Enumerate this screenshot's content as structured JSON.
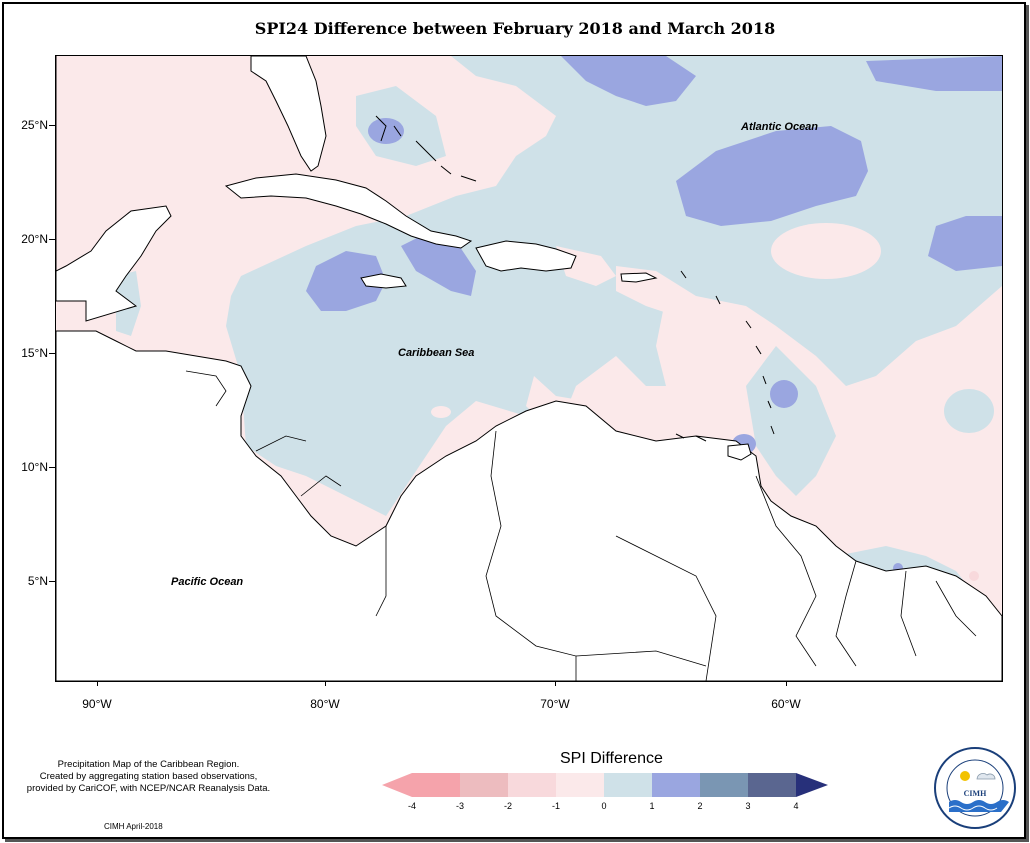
{
  "title": "SPI24 Difference between February 2018 and March 2018",
  "map": {
    "labels": {
      "atlantic": "Atlantic Ocean",
      "caribbean": "Caribbean Sea",
      "pacific": "Pacific Ocean"
    },
    "lat_ticks": [
      "25°N",
      "20°N",
      "15°N",
      "10°N",
      "5°N"
    ],
    "lon_ticks": [
      "90°W",
      "80°W",
      "70°W",
      "60°W"
    ]
  },
  "legend": {
    "title": "SPI Difference",
    "tick_labels": [
      "-4",
      "-3",
      "-2",
      "-1",
      "0",
      "1",
      "2",
      "3",
      "4"
    ],
    "colors": {
      "minus4_3": "#f5a3ab",
      "minus3_2": "#edbcbf",
      "minus2_1": "#f8d9dc",
      "minus1_0": "#fbe9ea",
      "zero_1": "#cfe1e8",
      "one_2": "#9aa6e0",
      "two_3": "#7a96b3",
      "three_4": "#5a6690",
      "over4": "#27307a"
    }
  },
  "note": {
    "line1": "Precipitation Map of the Caribbean Region.",
    "line2": "Created by aggregating station based observations,",
    "line3": "provided by CariCOF, with NCEP/NCAR Reanalysis Data."
  },
  "footer": "CIMH April-2018",
  "logo": {
    "arc_text": "Caribbean Institute for Meteorology and Hydrology",
    "label": "CIMH"
  }
}
